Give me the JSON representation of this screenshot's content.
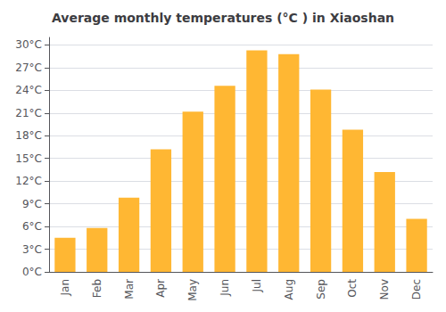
{
  "chart_data": {
    "type": "bar",
    "title": "Average monthly temperatures (°C ) in Xiaoshan",
    "categories": [
      "Jan",
      "Feb",
      "Mar",
      "Apr",
      "May",
      "Jun",
      "Jul",
      "Aug",
      "Sep",
      "Oct",
      "Nov",
      "Dec"
    ],
    "values": [
      4.5,
      5.8,
      9.8,
      16.2,
      21.2,
      24.6,
      29.3,
      28.8,
      24.1,
      18.8,
      13.2,
      7.0
    ],
    "color": "#FFB733",
    "ylim": [
      0,
      31
    ],
    "yticks": [
      {
        "value": 0,
        "label": "0°C"
      },
      {
        "value": 3,
        "label": "3°C"
      },
      {
        "value": 6,
        "label": "6°C"
      },
      {
        "value": 9,
        "label": "9°C"
      },
      {
        "value": 12,
        "label": "12°C"
      },
      {
        "value": 15,
        "label": "15°C"
      },
      {
        "value": 18,
        "label": "18°C"
      },
      {
        "value": 21,
        "label": "21°C"
      },
      {
        "value": 24,
        "label": "24°C"
      },
      {
        "value": 27,
        "label": "27°C"
      },
      {
        "value": 30,
        "label": "30°C"
      }
    ],
    "grid": true
  }
}
